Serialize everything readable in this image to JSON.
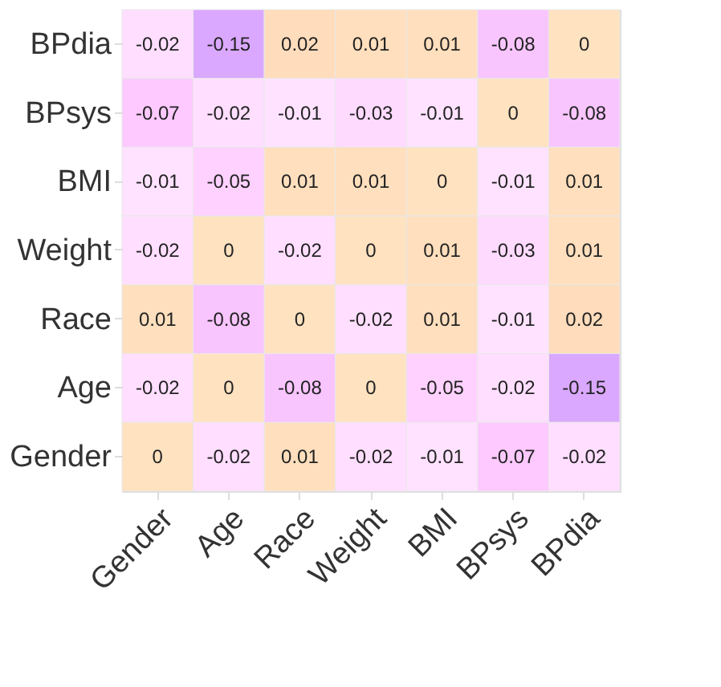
{
  "chart_data": {
    "type": "heatmap",
    "categories": [
      "Gender",
      "Age",
      "Race",
      "Weight",
      "BMI",
      "BPsys",
      "BPdia"
    ],
    "y_categories": [
      "BPdia",
      "BPsys",
      "BMI",
      "Weight",
      "Race",
      "Age",
      "Gender"
    ],
    "cells": [
      [
        -0.02,
        -0.15,
        0.02,
        0.01,
        0.01,
        -0.08,
        0
      ],
      [
        -0.07,
        -0.02,
        -0.01,
        -0.03,
        -0.01,
        0,
        -0.08
      ],
      [
        -0.01,
        -0.05,
        0.01,
        0.01,
        0,
        -0.01,
        0.01
      ],
      [
        -0.02,
        0,
        -0.02,
        0,
        0.01,
        -0.03,
        0.01
      ],
      [
        0.01,
        -0.08,
        0,
        -0.02,
        0.01,
        -0.01,
        0.02
      ],
      [
        -0.02,
        0,
        -0.08,
        0,
        -0.05,
        -0.02,
        -0.15
      ],
      [
        0,
        -0.02,
        0.01,
        -0.02,
        -0.01,
        -0.07,
        -0.02
      ]
    ],
    "data_labels": true
  }
}
